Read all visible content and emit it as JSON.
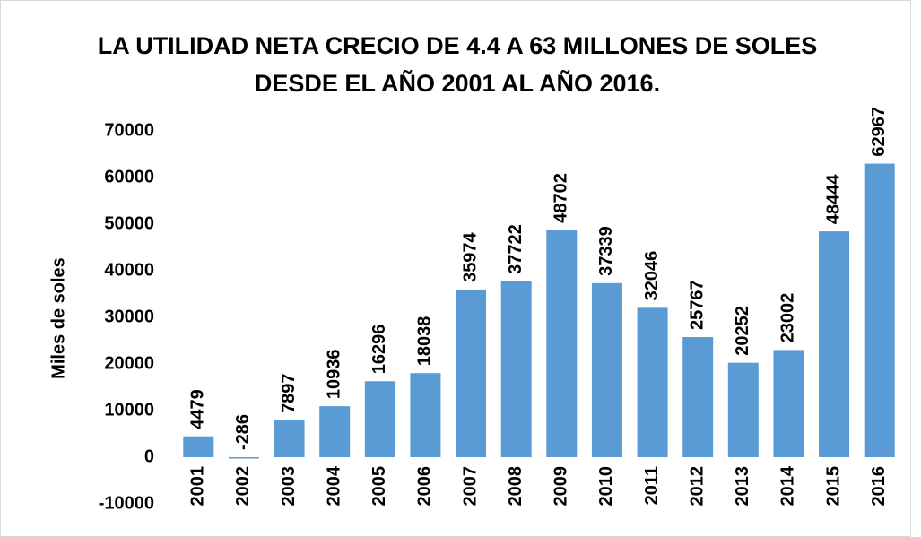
{
  "chart_data": {
    "type": "bar",
    "title": "LA UTILIDAD NETA CRECIO DE 4.4 A 63 MILLONES DE SOLES DESDE EL AÑO 2001 AL AÑO 2016.",
    "y_label": "Miles de soles",
    "categories": [
      "2001",
      "2002",
      "2003",
      "2004",
      "2005",
      "2006",
      "2007",
      "2008",
      "2009",
      "2010",
      "2011",
      "2012",
      "2013",
      "2014",
      "2015",
      "2016"
    ],
    "values": [
      4479,
      -286,
      7897,
      10936,
      16296,
      18038,
      35974,
      37722,
      48702,
      37339,
      32046,
      25767,
      20252,
      23002,
      48444,
      62967
    ],
    "color": "#5b9bd5",
    "ylim": [
      -10000,
      70000
    ],
    "yticks": [
      -10000,
      0,
      10000,
      20000,
      30000,
      40000,
      50000,
      60000,
      70000
    ],
    "grid": false
  }
}
